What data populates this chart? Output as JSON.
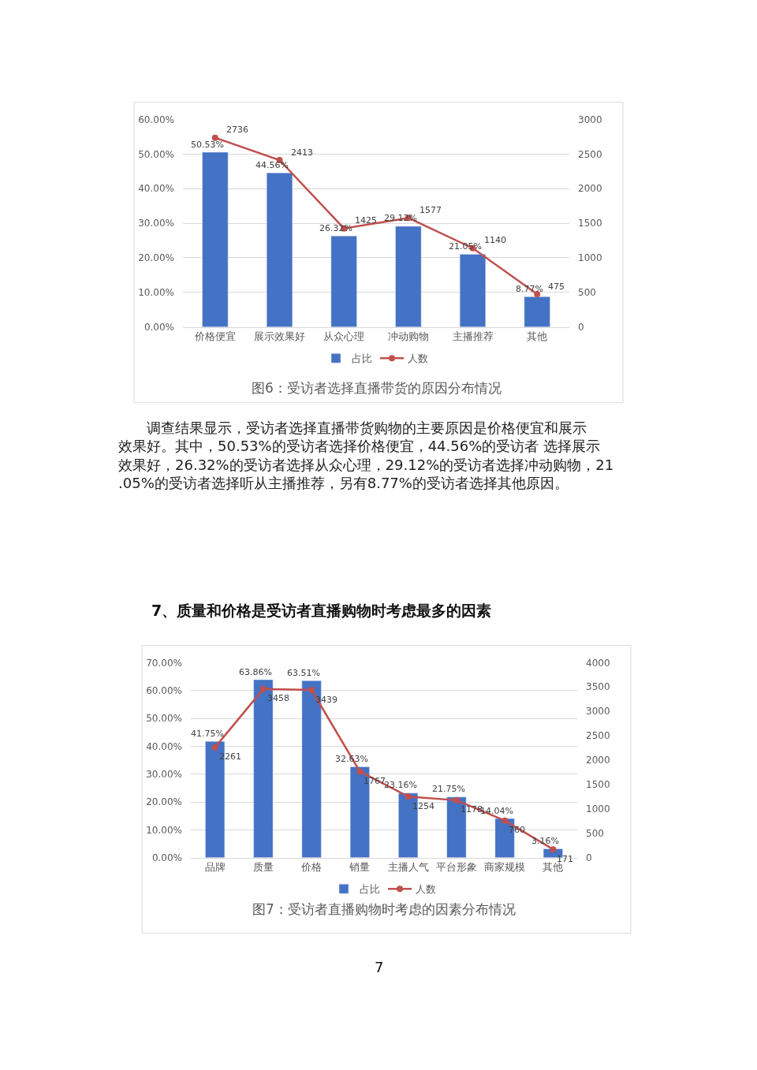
{
  "chart_data": [
    {
      "type": "bar",
      "title": "图6：受访者选择直播带货的原因分布情况",
      "categories": [
        "价格便宜",
        "展示效果好",
        "从众心理",
        "冲动购物",
        "主播推荐",
        "其他"
      ],
      "series": [
        {
          "name": "占比",
          "color": "#4472c4",
          "values": [
            50.53,
            44.56,
            26.32,
            29.12,
            21.05,
            8.77
          ],
          "value_labels": [
            "50.53%",
            "44.56%",
            "26.32%",
            "29.12%",
            "21.05%",
            "8.77%"
          ]
        },
        {
          "name": "人数",
          "type": "line",
          "axis": "y2",
          "color": "#c0504d",
          "values": [
            2736,
            2413,
            1425,
            1577,
            1140,
            475
          ],
          "value_labels": [
            "2736",
            "2413",
            "1425",
            "1577",
            "1140",
            "475"
          ]
        }
      ],
      "ylim": [
        0,
        60
      ],
      "yticks": [
        {
          "value": 0,
          "label": "0.00%"
        },
        {
          "value": 10,
          "label": "10.00%"
        },
        {
          "value": 20,
          "label": "20.00%"
        },
        {
          "value": 30,
          "label": "30.00%"
        },
        {
          "value": 40,
          "label": "40.00%"
        },
        {
          "value": 50,
          "label": "50.00%"
        },
        {
          "value": 60,
          "label": "60.00%"
        }
      ],
      "y2lim": [
        0,
        3000
      ],
      "y2ticks": [
        0,
        500,
        1000,
        1500,
        2000,
        2500,
        3000
      ],
      "grid": "y",
      "legend": "bottom",
      "marker": "circle",
      "annotations": [
        "调查结果显示，受访者选择直播带货购物的主要原因是价格便宜和展示效果好。其中，50.53%的受访者选择价格便宜，44.56%的受访者 选择展示效果好，26.32%的受访者选择从众心理，29.12%的受访者选择冲动购物，21.05%的受访者选择听从主播推荐，另有8.77%的受访者选择其他原因。",
        "7、质量和价格是受访者直播购物时考虑最多的因素"
      ]
    },
    {
      "type": "bar",
      "title": "图7：受访者直播购物时考虑的因素分布情况",
      "categories": [
        "品牌",
        "质量",
        "价格",
        "销量",
        "主播人气",
        "平台形象",
        "商家规模",
        "其他"
      ],
      "series": [
        {
          "name": "占比",
          "color": "#4472c4",
          "values": [
            41.75,
            63.86,
            63.51,
            32.63,
            23.16,
            21.75,
            14.04,
            3.16
          ],
          "value_labels": [
            "41.75%",
            "63.86%",
            "63.51%",
            "32.63%",
            "23.16%",
            "21.75%",
            "14.04%",
            "3.16%"
          ]
        },
        {
          "name": "人数",
          "type": "line",
          "axis": "y2",
          "color": "#c0504d",
          "values": [
            2261,
            3458,
            3439,
            1767,
            1254,
            1178,
            760,
            171
          ],
          "value_labels": [
            "2261",
            "3458",
            "3439",
            "1767",
            "1254",
            "1178",
            "760",
            "171"
          ]
        }
      ],
      "ylim": [
        0,
        70
      ],
      "yticks": [
        {
          "value": 0,
          "label": "0.00%"
        },
        {
          "value": 10,
          "label": "10.00%"
        },
        {
          "value": 20,
          "label": "20.00%"
        },
        {
          "value": 30,
          "label": "30.00%"
        },
        {
          "value": 40,
          "label": "40.00%"
        },
        {
          "value": 50,
          "label": "50.00%"
        },
        {
          "value": 60,
          "label": "60.00%"
        },
        {
          "value": 70,
          "label": "70.00%"
        }
      ],
      "y2lim": [
        0,
        4000
      ],
      "y2ticks": [
        0,
        500,
        1000,
        1500,
        2000,
        2500,
        3000,
        3500,
        4000
      ],
      "grid": "y",
      "legend": "bottom",
      "marker": "circle",
      "annotations": [
        "7"
      ]
    }
  ]
}
